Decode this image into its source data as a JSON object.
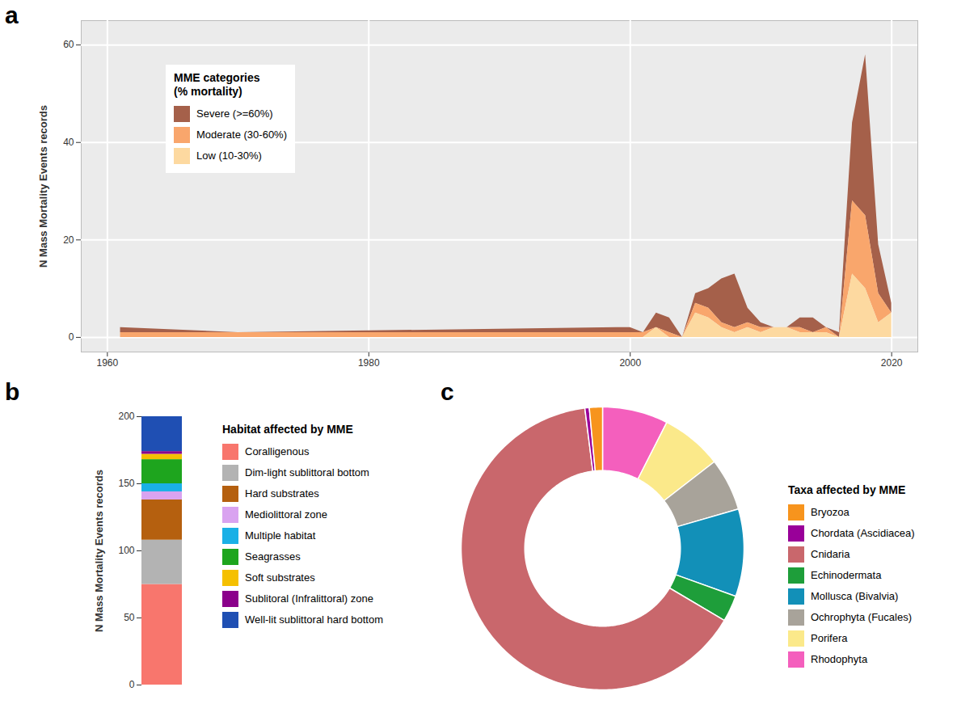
{
  "chart_data": [
    {
      "panel_label": "a",
      "type": "area",
      "stacked": true,
      "grid": true,
      "legend": "upper left",
      "y_label": "N Mass Mortality Events records",
      "legend_title": "MME categories\n(% mortality)",
      "x": [
        1961,
        1970,
        1999,
        2000,
        2001,
        2002,
        2003,
        2004,
        2005,
        2006,
        2007,
        2008,
        2009,
        2010,
        2011,
        2012,
        2013,
        2014,
        2015,
        2016,
        2017,
        2018,
        2019,
        2020
      ],
      "series": [
        {
          "name": "Severe (>=60%)",
          "color": "#a5604a",
          "values": [
            1,
            0,
            1,
            1,
            0,
            3,
            3,
            0,
            2,
            4,
            9,
            11,
            3,
            1,
            0,
            0,
            2,
            3,
            0,
            1,
            16,
            33,
            10,
            2
          ]
        },
        {
          "name": "Moderate (30-60%)",
          "color": "#f9a66c",
          "values": [
            1,
            1,
            1,
            1,
            1,
            0,
            1,
            0,
            2,
            2,
            1,
            1,
            1,
            1,
            0,
            0,
            1,
            0,
            1,
            0,
            15,
            15,
            6,
            0
          ]
        },
        {
          "name": "Low (10-30%)",
          "color": "#fdd9a0",
          "values": [
            0,
            0,
            0,
            0,
            0,
            2,
            0,
            0,
            5,
            4,
            2,
            1,
            2,
            1,
            2,
            2,
            1,
            1,
            1,
            0,
            13,
            10,
            3,
            5
          ]
        }
      ],
      "xlim": [
        1958,
        2022
      ],
      "xticks": [
        1960,
        1980,
        2000,
        2020
      ],
      "ylim": [
        -3,
        65
      ],
      "yticks": [
        0,
        20,
        40,
        60
      ]
    },
    {
      "panel_label": "b",
      "type": "bar",
      "stacked": true,
      "legend": "right",
      "tick_labels": "y",
      "y_label": "N Mass Mortality Events records",
      "legend_title": "Habitat affected by MME",
      "categories": [
        null
      ],
      "series": [
        {
          "name": "Coralligenous",
          "color": "#f8766d",
          "values": [
            75
          ]
        },
        {
          "name": "Dim-light sublittoral bottom",
          "color": "#b3b3b3",
          "values": [
            33
          ]
        },
        {
          "name": "Hard substrates",
          "color": "#b5600f",
          "values": [
            30
          ]
        },
        {
          "name": "Mediolittoral zone",
          "color": "#d9a3f0",
          "values": [
            6
          ]
        },
        {
          "name": "Multiple habitat",
          "color": "#1ab0e6",
          "values": [
            6
          ]
        },
        {
          "name": "Seagrasses",
          "color": "#1ea51e",
          "values": [
            18
          ]
        },
        {
          "name": "Soft substrates",
          "color": "#f5c000",
          "values": [
            4
          ]
        },
        {
          "name": "Sublitoral (Infralittoral) zone",
          "color": "#8b008b",
          "values": [
            2
          ]
        },
        {
          "name": "Well-lit sublittoral hard bottom",
          "color": "#1f4fb3",
          "values": [
            26
          ]
        }
      ],
      "ylim": [
        0,
        200
      ],
      "yticks": [
        0,
        50,
        100,
        150,
        200
      ]
    },
    {
      "panel_label": "c",
      "type": "donut",
      "legend": "right",
      "tick_labels": false,
      "legend_title": "Taxa affected by MME",
      "categories": [
        "Bryozoa",
        "Chordata (Ascidiacea)",
        "Cnidaria",
        "Echinodermata",
        "Mollusca (Bivalvia)",
        "Ochrophyta (Fucales)",
        "Porifera",
        "Rhodophyta"
      ],
      "values": [
        1.5,
        0.5,
        64.5,
        3,
        10,
        6,
        7,
        7.5
      ],
      "colors": [
        "#f7941d",
        "#990099",
        "#c9676c",
        "#1e9e3a",
        "#1290b8",
        "#a8a39a",
        "#fbe98a",
        "#f45fbd"
      ]
    }
  ]
}
